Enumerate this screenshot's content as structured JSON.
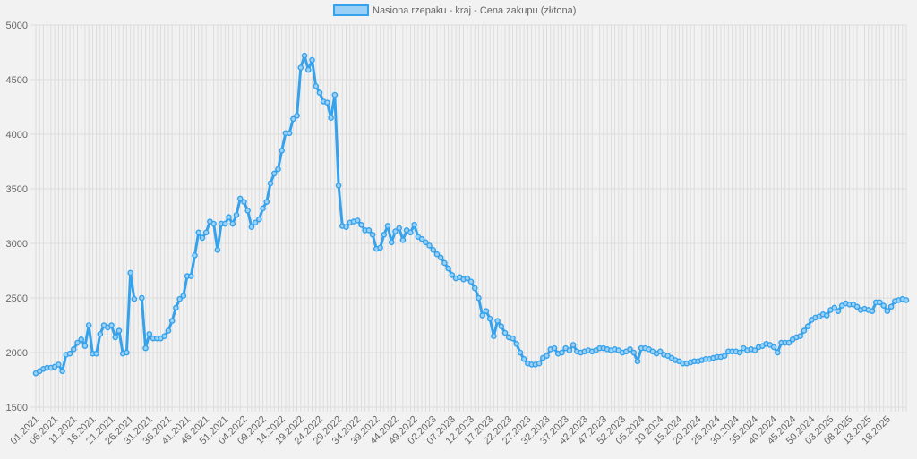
{
  "chart_data": {
    "type": "line",
    "legend": {
      "position": "top",
      "label": "Nasiona rzepaku - kraj - Cena zakupu (zł/tona)"
    },
    "colors": {
      "line": "#36a2eb",
      "legend_fill": "#9ad0f5",
      "grid": "#dcdcdc",
      "text": "#666666",
      "background": "#f2f2f2"
    },
    "grid": true,
    "ylim": [
      1500,
      5000
    ],
    "y_ticks": [
      1500,
      2000,
      2500,
      3000,
      3500,
      4000,
      4500,
      5000
    ],
    "x_tick_labels": [
      "01.2021",
      "06.2021",
      "11.2021",
      "16.2021",
      "21.2021",
      "26.2021",
      "31.2021",
      "36.2021",
      "41.2021",
      "46.2021",
      "51.2021",
      "04.2022",
      "09.2022",
      "14.2022",
      "19.2022",
      "24.2022",
      "29.2022",
      "34.2022",
      "39.2022",
      "44.2022",
      "49.2022",
      "02.2023",
      "07.2023",
      "12.2023",
      "17.2023",
      "22.2023",
      "27.2023",
      "32.2023",
      "37.2023",
      "42.2023",
      "47.2023",
      "52.2023",
      "05.2024",
      "10.2024",
      "15.2024",
      "20.2024",
      "25.2024",
      "30.2024",
      "35.2024",
      "40.2024",
      "45.2024",
      "50.2024",
      "03.2025",
      "08.2025",
      "13.2025",
      "18.2025"
    ],
    "series": [
      {
        "name": "Nasiona rzepaku - kraj - Cena zakupu (zł/tona)",
        "values": [
          1810,
          1830,
          1850,
          1860,
          1860,
          1870,
          1890,
          1830,
          1980,
          1990,
          2030,
          2090,
          2120,
          2060,
          2250,
          1990,
          1990,
          2170,
          2250,
          2230,
          2250,
          2140,
          2200,
          1990,
          2000,
          2730,
          2490,
          null,
          2500,
          2040,
          2170,
          2130,
          2130,
          2130,
          2150,
          2200,
          2290,
          2410,
          2490,
          2520,
          2700,
          2700,
          2890,
          3100,
          3050,
          3100,
          3200,
          3180,
          2940,
          3180,
          3180,
          3240,
          3180,
          3260,
          3410,
          3380,
          3300,
          3150,
          3190,
          3220,
          3320,
          3380,
          3550,
          3640,
          3680,
          3850,
          4010,
          4010,
          4140,
          4170,
          4610,
          4720,
          4590,
          4680,
          4440,
          4380,
          4300,
          4290,
          4150,
          4360,
          3530,
          3160,
          3150,
          3190,
          3200,
          3210,
          3170,
          3120,
          3120,
          3080,
          2950,
          2960,
          3080,
          3160,
          3010,
          3110,
          3140,
          3030,
          3120,
          3100,
          3170,
          3060,
          3040,
          3010,
          2980,
          2940,
          2900,
          2870,
          2820,
          2770,
          2710,
          2680,
          2690,
          2670,
          2680,
          2650,
          2590,
          2500,
          2340,
          2380,
          2310,
          2150,
          2290,
          2240,
          2180,
          2140,
          2130,
          2080,
          2000,
          1940,
          1900,
          1890,
          1890,
          1900,
          1950,
          1970,
          2030,
          2040,
          1990,
          2000,
          2040,
          2020,
          2070,
          2010,
          2000,
          2010,
          2020,
          2010,
          2020,
          2040,
          2040,
          2030,
          2020,
          2030,
          2020,
          2000,
          2010,
          2030,
          2000,
          1920,
          2040,
          2040,
          2030,
          2010,
          1990,
          2010,
          1980,
          1970,
          1950,
          1930,
          1920,
          1900,
          1900,
          1910,
          1920,
          1920,
          1930,
          1940,
          1940,
          1950,
          1960,
          1960,
          1970,
          2010,
          2010,
          2010,
          2000,
          2040,
          2020,
          2030,
          2020,
          2050,
          2060,
          2080,
          2070,
          2050,
          2000,
          2090,
          2090,
          2090,
          2120,
          2140,
          2150,
          2200,
          2240,
          2300,
          2320,
          2330,
          2350,
          2340,
          2390,
          2410,
          2380,
          2430,
          2450,
          2440,
          2440,
          2420,
          2390,
          2400,
          2390,
          2380,
          2460,
          2460,
          2430,
          2380,
          2420,
          2470,
          2480,
          2490,
          2480
        ]
      }
    ]
  }
}
